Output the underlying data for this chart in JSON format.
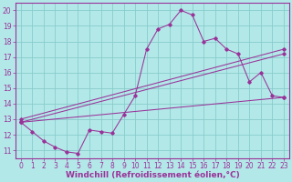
{
  "background_color": "#b3e8e8",
  "grid_color": "#88cccc",
  "line_color": "#993399",
  "xlim": [
    -0.5,
    23.5
  ],
  "ylim": [
    10.5,
    20.5
  ],
  "xticks": [
    0,
    1,
    2,
    3,
    4,
    5,
    6,
    7,
    8,
    9,
    10,
    11,
    12,
    13,
    14,
    15,
    16,
    17,
    18,
    19,
    20,
    21,
    22,
    23
  ],
  "yticks": [
    11,
    12,
    13,
    14,
    15,
    16,
    17,
    18,
    19,
    20
  ],
  "line1_x": [
    0,
    1,
    2,
    3,
    4,
    5,
    6,
    7,
    8,
    9,
    10,
    11,
    12,
    13,
    14,
    15,
    16,
    17,
    18,
    19,
    20,
    21,
    22,
    23
  ],
  "line1_y": [
    12.8,
    12.2,
    11.6,
    11.2,
    10.9,
    10.8,
    12.3,
    12.2,
    12.1,
    13.3,
    14.5,
    17.5,
    18.8,
    19.1,
    20.0,
    19.7,
    18.0,
    18.2,
    17.5,
    17.2,
    15.4,
    16.0,
    14.5,
    14.4
  ],
  "line2_x": [
    0,
    23
  ],
  "line2_y": [
    12.8,
    17.2
  ],
  "line3_x": [
    0,
    23
  ],
  "line3_y": [
    12.8,
    14.4
  ],
  "line4_x": [
    0,
    23
  ],
  "line4_y": [
    13.0,
    17.5
  ],
  "xlabel": "Windchill (Refroidissement éolien,°C)",
  "xlabel_fontsize": 6.5,
  "tick_fontsize": 5.5
}
